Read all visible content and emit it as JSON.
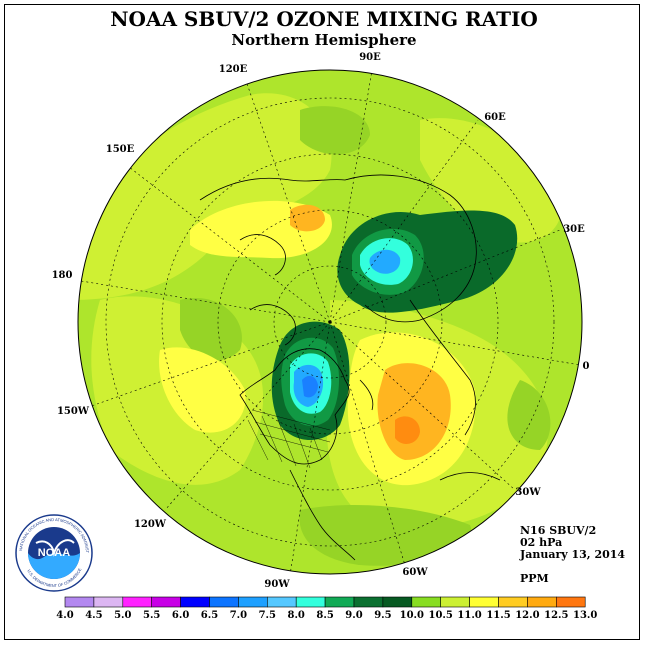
{
  "title": "NOAA SBUV/2 OZONE MIXING RATIO",
  "subtitle": "Northern Hemisphere",
  "longitude_labels": {
    "e90": "90E",
    "e60": "60E",
    "e30": "30E",
    "zero": "0",
    "w30": "30W",
    "w60": "60W",
    "w90": "90W",
    "w120": "120W",
    "w150": "150W",
    "d180": "180",
    "e150": "150E",
    "e120": "120E"
  },
  "info": {
    "instrument": "N16 SBUV/2",
    "level": "02 hPa",
    "date": "January 13, 2014",
    "units": "PPM"
  },
  "legend": {
    "ticks": [
      "4.0",
      "4.5",
      "5.0",
      "5.5",
      "6.0",
      "6.5",
      "7.0",
      "7.5",
      "8.0",
      "8.5",
      "9.0",
      "9.5",
      "10.0",
      "10.5",
      "11.0",
      "11.5",
      "12.0",
      "12.5",
      "13.0"
    ],
    "colors": [
      "#b388f0",
      "#dcb6f2",
      "#ff22ff",
      "#c800e6",
      "#0000ff",
      "#0d74ff",
      "#1ea0ff",
      "#55c8ff",
      "#33ffdd",
      "#11aa55",
      "#0b7030",
      "#075a22",
      "#88dd22",
      "#ccf033",
      "#ffff33",
      "#ffcc22",
      "#ffaa11",
      "#ff7711",
      "#ff2200",
      "#b85020"
    ]
  },
  "logo": {
    "text": "NOAA",
    "ring_text_top": "NATIONAL OCEANIC AND ATMOSPHERIC ADMINISTRATION",
    "ring_text_bottom": "U.S. DEPARTMENT OF COMMERCE"
  },
  "colors": {
    "background_field": "#aee52c",
    "light_field": "#cff033",
    "yellow_field": "#ffff44",
    "orange_field": "#ffb520",
    "dark_orange": "#ff8c10",
    "green_mid": "#119944",
    "green_dark": "#0a6a2a",
    "cyan": "#33ffdd",
    "blue_light": "#22aaff",
    "blue": "#1a80ff"
  }
}
